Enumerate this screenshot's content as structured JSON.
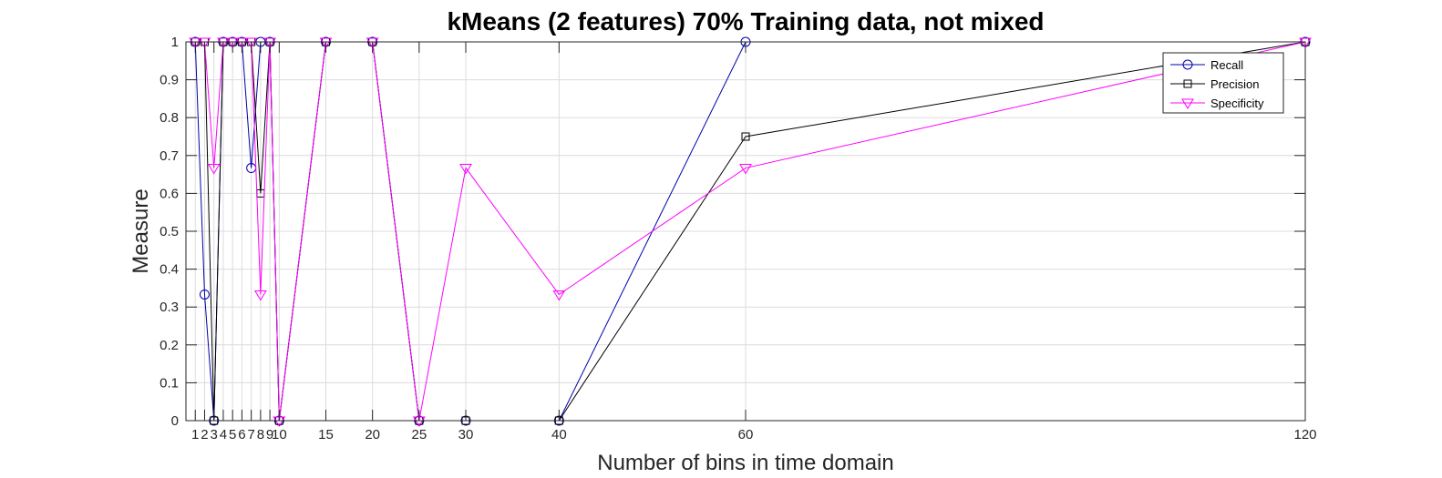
{
  "chart_data": {
    "type": "line",
    "title": "kMeans (2 features) 70% Training data, not mixed",
    "xlabel": "Number of bins in time domain",
    "ylabel": "Measure",
    "x": [
      1,
      2,
      3,
      4,
      5,
      6,
      7,
      8,
      9,
      10,
      15,
      20,
      25,
      30,
      40,
      60,
      120
    ],
    "xticks": [
      1,
      2,
      3,
      4,
      5,
      6,
      7,
      8,
      9,
      10,
      15,
      20,
      25,
      30,
      40,
      60,
      120
    ],
    "xlim": [
      0,
      120
    ],
    "ylim": [
      0,
      1
    ],
    "yticks": [
      "0",
      "0.1",
      "0.2",
      "0.3",
      "0.4",
      "0.5",
      "0.6",
      "0.7",
      "0.8",
      "0.9",
      "1"
    ],
    "grid": true,
    "legend_position": "top-right",
    "series": [
      {
        "name": "Recall",
        "color": "#0000AA",
        "marker": "circle",
        "values": [
          1,
          0.333,
          0,
          1,
          1,
          1,
          0.667,
          1,
          1,
          0,
          1,
          1,
          0,
          0,
          0,
          1,
          1
        ]
      },
      {
        "name": "Precision",
        "color": "#000000",
        "marker": "square",
        "values": [
          1,
          1,
          0,
          1,
          1,
          1,
          1,
          0.6,
          1,
          0,
          1,
          1,
          0,
          0,
          0,
          0.75,
          1
        ]
      },
      {
        "name": "Specificity",
        "color": "#FF00FF",
        "marker": "triangle-down",
        "values": [
          1,
          1,
          0.667,
          1,
          1,
          1,
          1,
          0.333,
          1,
          0,
          1,
          1,
          0,
          0.667,
          0.333,
          0.667,
          1
        ]
      }
    ]
  }
}
